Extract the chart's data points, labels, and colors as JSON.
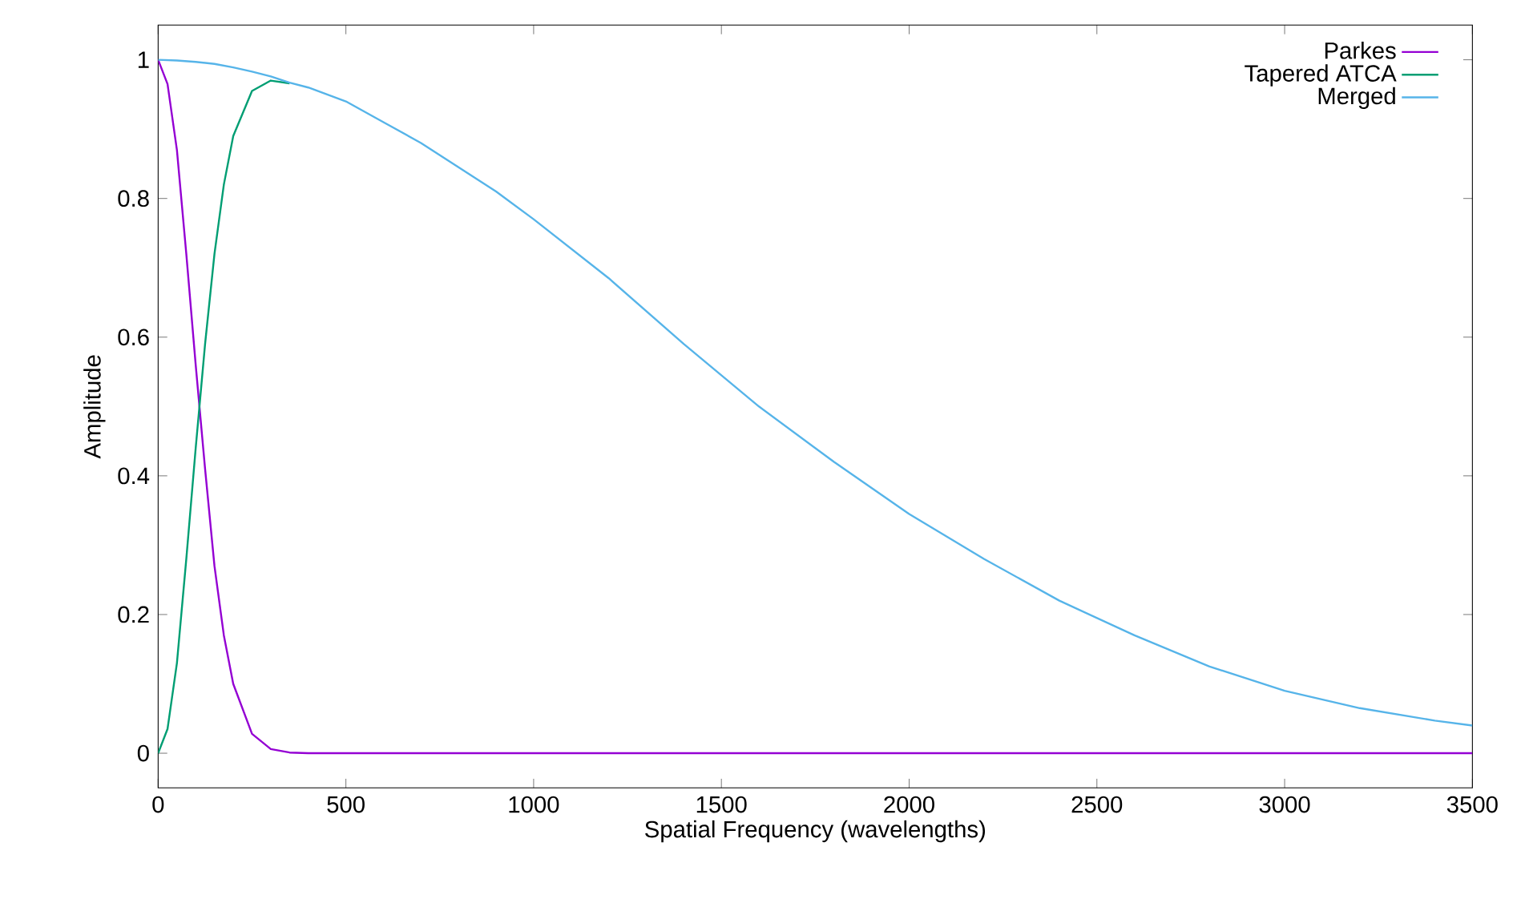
{
  "chart_data": {
    "type": "line",
    "xlabel": "Spatial Frequency (wavelengths)",
    "ylabel": "Amplitude",
    "xlim": [
      0,
      3500
    ],
    "ylim": [
      -0.05,
      1.05
    ],
    "xticks": [
      0,
      500,
      1000,
      1500,
      2000,
      2500,
      3000,
      3500
    ],
    "yticks": [
      0,
      0.2,
      0.4,
      0.6,
      0.8,
      1
    ],
    "legend": "top right",
    "grid": false,
    "marker": "none",
    "line_style": "solid",
    "series": [
      {
        "name": "Parkes",
        "color": "#9400d3",
        "x": [
          0,
          25,
          50,
          75,
          100,
          125,
          150,
          175,
          200,
          250,
          300,
          350,
          400,
          3500
        ],
        "values": [
          1,
          0.965,
          0.87,
          0.72,
          0.56,
          0.41,
          0.27,
          0.17,
          0.1,
          0.028,
          0.006,
          0.001,
          0,
          0
        ]
      },
      {
        "name": "Tapered ATCA",
        "color": "#009e73",
        "x": [
          0,
          25,
          50,
          75,
          100,
          125,
          150,
          175,
          200,
          250,
          300,
          350
        ],
        "values": [
          0,
          0.035,
          0.13,
          0.28,
          0.44,
          0.59,
          0.72,
          0.82,
          0.89,
          0.955,
          0.97,
          0.966
        ]
      },
      {
        "name": "Merged",
        "color": "#56b4e9",
        "x": [
          0,
          50,
          100,
          150,
          200,
          250,
          300,
          350,
          400,
          500,
          600,
          700,
          800,
          900,
          1000,
          1200,
          1400,
          1600,
          1800,
          2000,
          2200,
          2400,
          2600,
          2800,
          3000,
          3200,
          3400,
          3500
        ],
        "values": [
          1,
          0.999,
          0.997,
          0.994,
          0.989,
          0.983,
          0.976,
          0.967,
          0.96,
          0.94,
          0.91,
          0.88,
          0.845,
          0.81,
          0.77,
          0.685,
          0.59,
          0.5,
          0.42,
          0.345,
          0.28,
          0.22,
          0.17,
          0.125,
          0.09,
          0.065,
          0.047,
          0.04
        ]
      }
    ]
  }
}
